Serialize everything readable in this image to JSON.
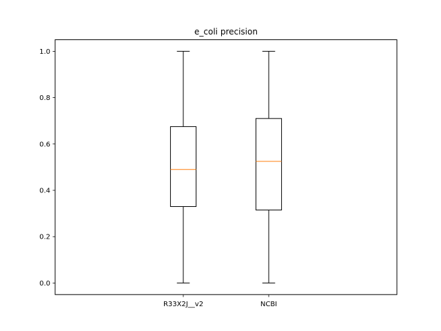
{
  "chart_data": {
    "type": "box",
    "title": "e_coli precision",
    "xlabel": "",
    "ylabel": "",
    "ylim": [
      -0.05,
      1.05
    ],
    "yticks": [
      0.0,
      0.2,
      0.4,
      0.6,
      0.8,
      1.0
    ],
    "ytick_labels": [
      "0.0",
      "0.2",
      "0.4",
      "0.6",
      "0.8",
      "1.0"
    ],
    "grid": false,
    "colors": {
      "box": "#000000",
      "median": "#ff7f0e"
    },
    "categories": [
      "R33X2J__v2",
      "NCBI"
    ],
    "boxes": [
      {
        "label": "R33X2J__v2",
        "min": 0.0,
        "q1": 0.33,
        "median": 0.49,
        "q3": 0.675,
        "max": 1.0
      },
      {
        "label": "NCBI",
        "min": 0.0,
        "q1": 0.315,
        "median": 0.525,
        "q3": 0.71,
        "max": 1.0
      }
    ]
  }
}
